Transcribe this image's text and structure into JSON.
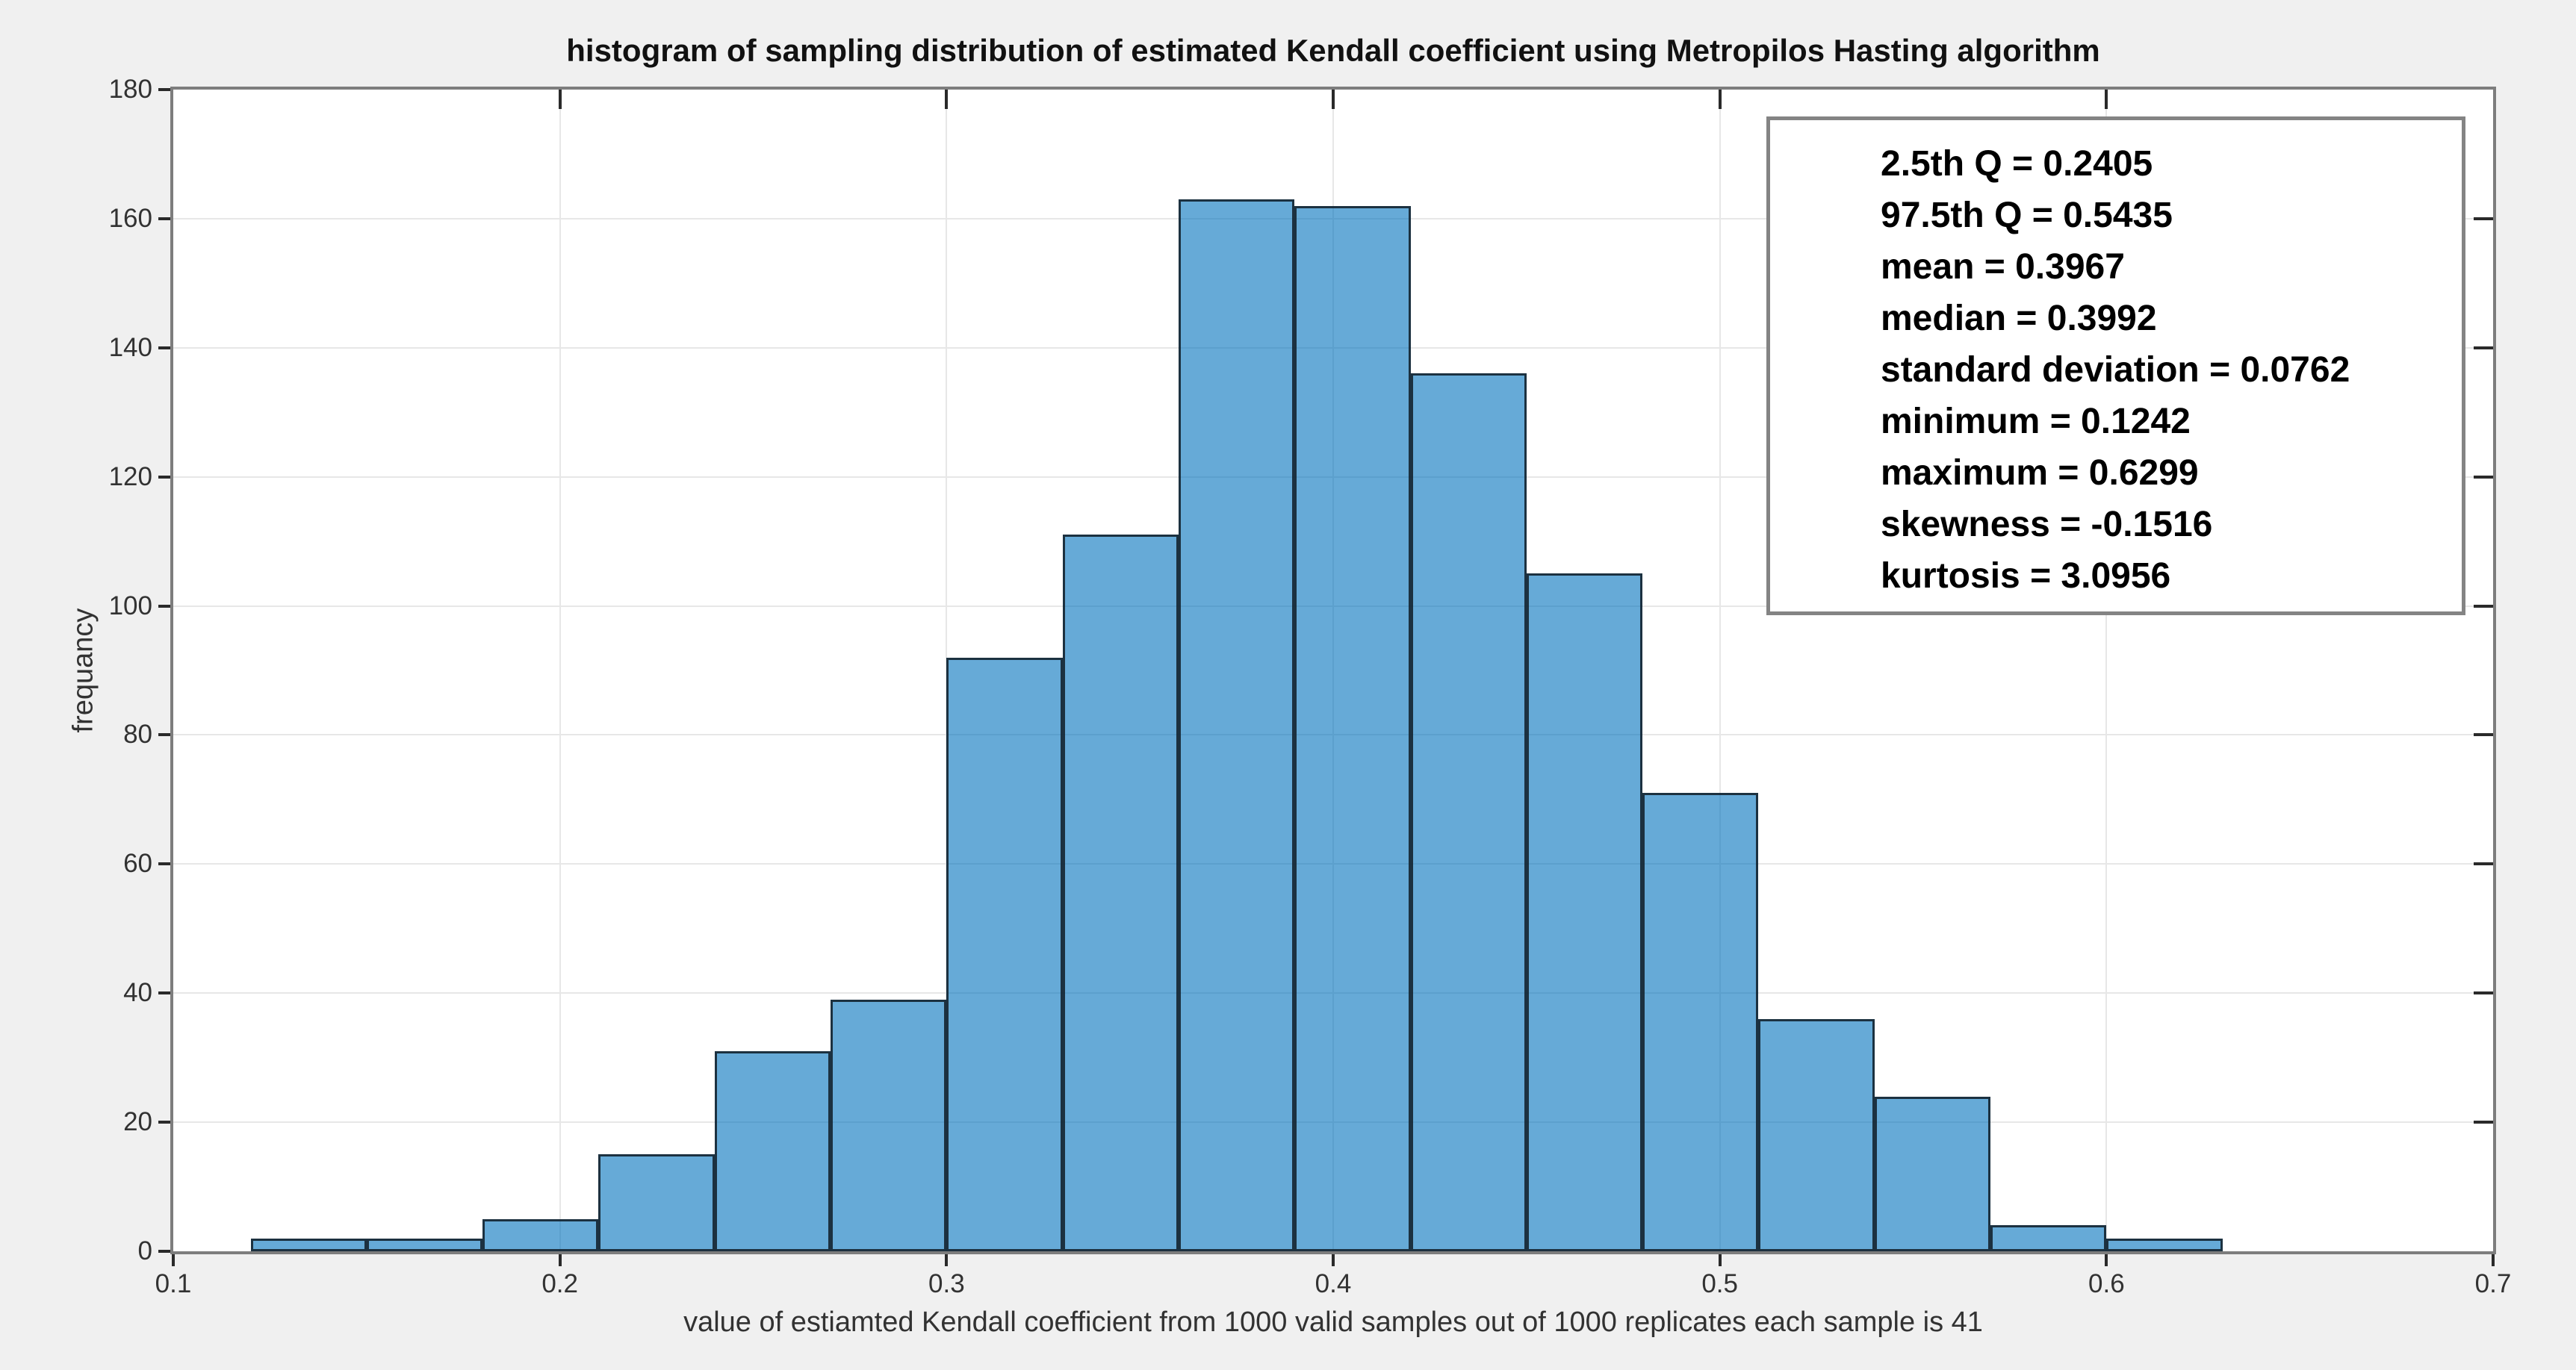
{
  "figure": {
    "background_color": "#f0f0f0",
    "plot_background_color": "#ffffff",
    "axes_border_color": "#7d7d7d",
    "grid_color": "#e7e7e7",
    "tick_color": "#2a2a2a"
  },
  "chart_data": {
    "type": "bar",
    "subtype": "histogram",
    "title": "histogram of sampling distribution of estimated Kendall coefficient using Metropilos Hasting algorithm",
    "xlabel": "value of estiamted Kendall coefficient from 1000 valid samples out of 1000 replicates each sample is 41",
    "ylabel": "frequancy",
    "bin_start": 0.12,
    "bin_width": 0.03,
    "counts": [
      2,
      2,
      5,
      15,
      31,
      39,
      92,
      111,
      163,
      162,
      136,
      105,
      71,
      36,
      24,
      4,
      2
    ],
    "bin_edges": [
      0.12,
      0.15,
      0.18,
      0.21,
      0.24,
      0.27,
      0.3,
      0.33,
      0.36,
      0.39,
      0.42,
      0.45,
      0.48,
      0.51,
      0.54,
      0.57,
      0.6,
      0.63
    ],
    "xlim": [
      0.1,
      0.7
    ],
    "ylim": [
      0,
      180
    ],
    "xticks": [
      0.1,
      0.2,
      0.3,
      0.4,
      0.5,
      0.6,
      0.7
    ],
    "xtick_labels": [
      "0.1",
      "0.2",
      "0.3",
      "0.4",
      "0.5",
      "0.6",
      "0.7"
    ],
    "yticks": [
      0,
      20,
      40,
      60,
      80,
      100,
      120,
      140,
      160,
      180
    ],
    "ytick_labels": [
      "0",
      "20",
      "40",
      "60",
      "80",
      "100",
      "120",
      "140",
      "160",
      "180"
    ],
    "grid": true,
    "bar_face_color": "rgba(0,114,189,0.6)",
    "bar_edge_color": "#0f1c26",
    "annotation_box": {
      "separator": " = ",
      "lines": [
        {
          "label": "2.5th Q",
          "value": "0.2405"
        },
        {
          "label": "97.5th Q",
          "value": "0.5435"
        },
        {
          "label": "mean",
          "value": "0.3967"
        },
        {
          "label": "median",
          "value": "0.3992"
        },
        {
          "label": "standard deviation",
          "value": "0.0762"
        },
        {
          "label": "minimum",
          "value": "0.1242"
        },
        {
          "label": "maximum",
          "value": "0.6299"
        },
        {
          "label": "skewness",
          "value": "-0.1516"
        },
        {
          "label": "kurtosis",
          "value": "3.0956"
        }
      ]
    }
  }
}
